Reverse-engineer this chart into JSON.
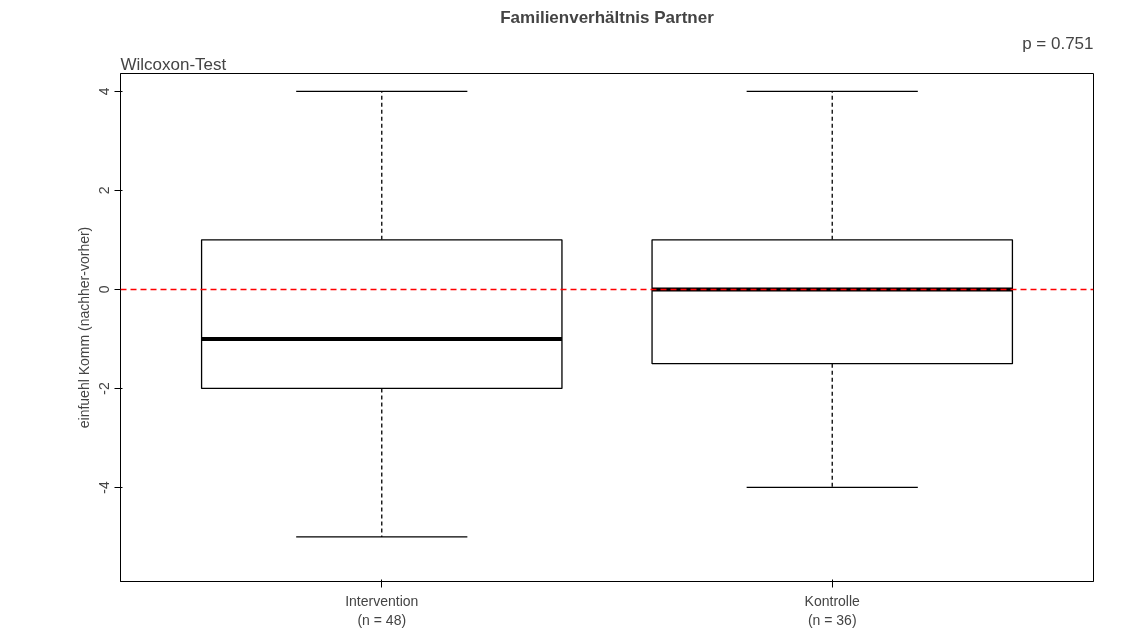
{
  "chart_data": {
    "type": "box",
    "title": "Familienverhältnis Partner",
    "ylabel": "einfuehl Komm (nachher-vorher)",
    "categories": [
      "Intervention\n(n = 48)",
      "Kontrolle\n(n = 36)"
    ],
    "boxes": [
      {
        "low": -5,
        "q1": -2,
        "median": -1,
        "q3": 1,
        "high": 4
      },
      {
        "low": -4,
        "q1": -1.5,
        "median": 0,
        "q3": 1,
        "high": 4
      }
    ],
    "color": "#ffffff",
    "ylim": [
      -5.9,
      4.36
    ],
    "yticks": [
      -4,
      -2,
      0,
      2,
      4
    ],
    "grid": false,
    "ref_lines": [
      {
        "axis": "y",
        "value": 0,
        "color": "#ff0000",
        "line_style": "dashed"
      }
    ],
    "annotations": [
      "Wilcoxon-Test",
      "p = 0.751"
    ]
  }
}
